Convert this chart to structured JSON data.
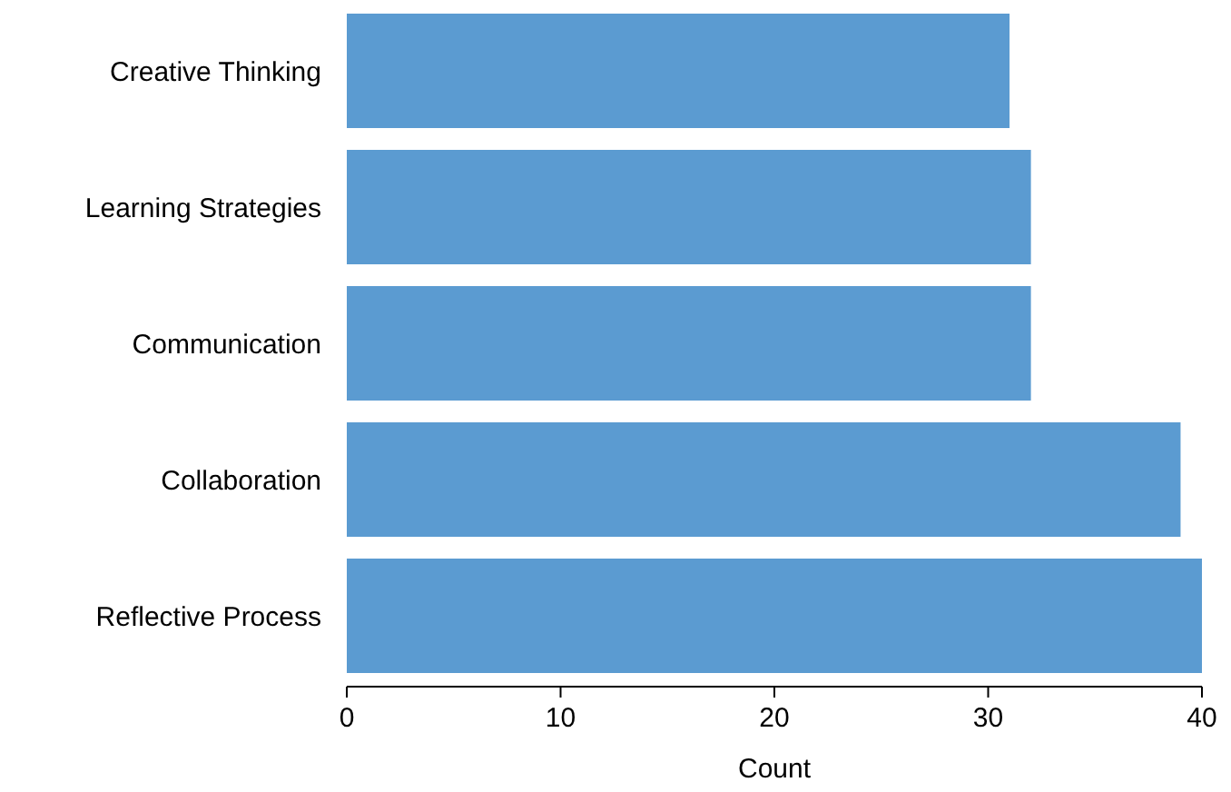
{
  "chart_data": {
    "type": "bar",
    "orientation": "horizontal",
    "xlabel": "Count",
    "categories": [
      "Creative Thinking",
      "Learning Strategies",
      "Communication",
      "Collaboration",
      "Reflective Process"
    ],
    "values": [
      31,
      32,
      32,
      39,
      40
    ],
    "color": "#5b9bd1",
    "xlim": [
      0,
      40
    ],
    "xticks": [
      0,
      10,
      20,
      30,
      40
    ],
    "grid": false
  }
}
